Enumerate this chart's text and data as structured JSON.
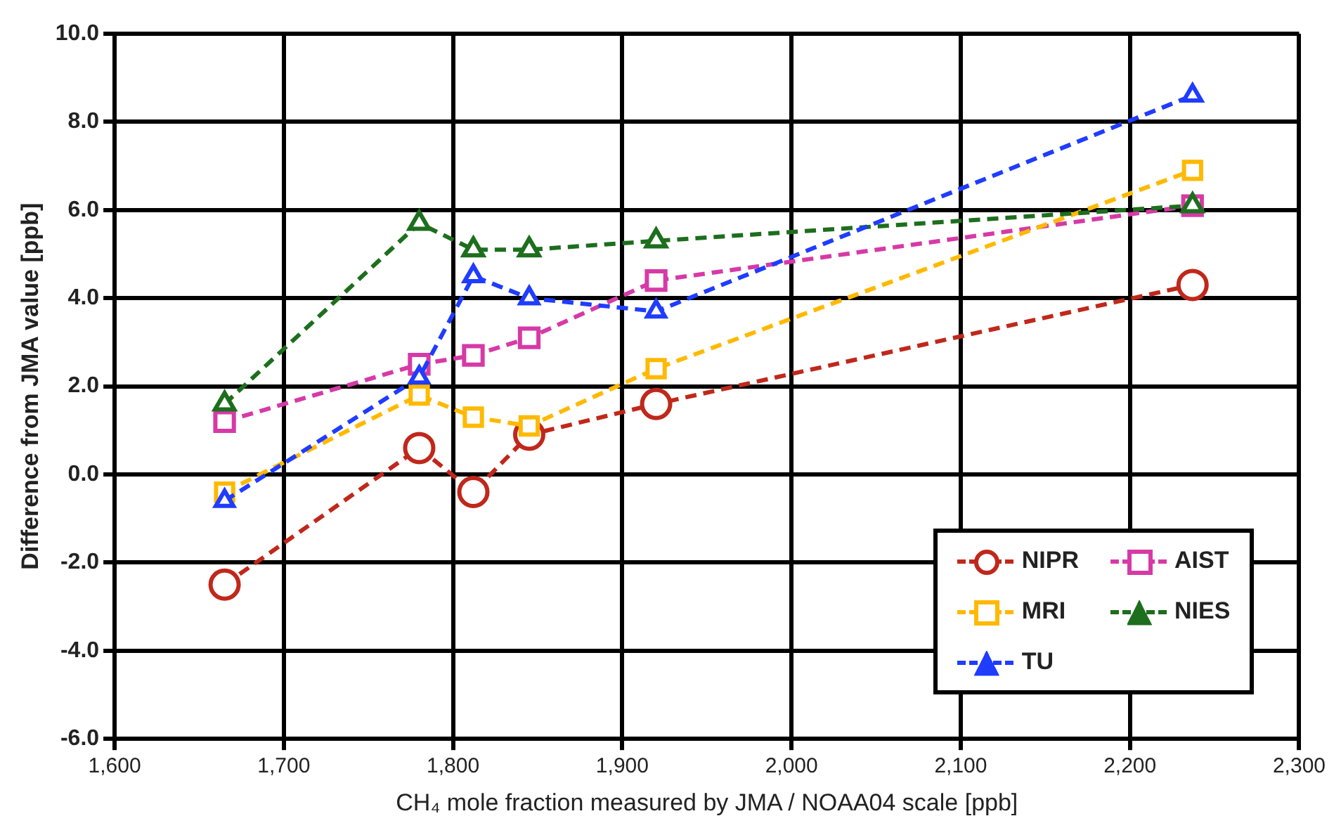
{
  "chart_data": {
    "type": "line",
    "xlabel": "CH₄ mole fraction measured by JMA / NOAA04 scale [ppb]",
    "ylabel": "Difference from JMA value [ppb]",
    "x": [
      1665,
      1780,
      1812,
      1845,
      1920,
      2237
    ],
    "series": [
      {
        "name": "NIPR",
        "color": "#c0281b",
        "marker": "circle",
        "values": [
          -2.5,
          0.6,
          -0.4,
          0.9,
          1.6,
          4.3
        ]
      },
      {
        "name": "AIST",
        "color": "#d63aa6",
        "marker": "square",
        "values": [
          1.2,
          2.5,
          2.7,
          3.1,
          4.4,
          6.1
        ]
      },
      {
        "name": "MRI",
        "color": "#ffb900",
        "marker": "square",
        "values": [
          -0.4,
          1.8,
          1.3,
          1.1,
          2.4,
          6.9
        ]
      },
      {
        "name": "NIES",
        "color": "#1d6e1d",
        "marker": "triangle",
        "values": [
          1.6,
          5.7,
          5.1,
          5.1,
          5.3,
          6.1
        ]
      },
      {
        "name": "TU",
        "color": "#1f3cff",
        "marker": "triangle",
        "values": [
          -0.6,
          2.2,
          4.5,
          4.0,
          3.7,
          8.6
        ]
      }
    ],
    "xlim": [
      1600,
      2300
    ],
    "xticks": [
      {
        "value": 1600,
        "label": "1,600"
      },
      {
        "value": 1700,
        "label": "1,700"
      },
      {
        "value": 1800,
        "label": "1,800"
      },
      {
        "value": 1900,
        "label": "1,900"
      },
      {
        "value": 2000,
        "label": "2,000"
      },
      {
        "value": 2100,
        "label": "2,100"
      },
      {
        "value": 2200,
        "label": "2,200"
      },
      {
        "value": 2300,
        "label": "2,300"
      }
    ],
    "ylim": [
      -6,
      10
    ],
    "yticks": [
      {
        "value": -6,
        "label": "-6.0"
      },
      {
        "value": -4,
        "label": "-4.0"
      },
      {
        "value": -2,
        "label": "-2.0"
      },
      {
        "value": 0,
        "label": "0.0"
      },
      {
        "value": 2,
        "label": "2.0"
      },
      {
        "value": 4,
        "label": "4.0"
      },
      {
        "value": 6,
        "label": "6.0"
      },
      {
        "value": 8,
        "label": "8.0"
      },
      {
        "value": 10,
        "label": "10.0"
      }
    ],
    "grid": true,
    "legend": "bottom right",
    "line_style": "dashed"
  }
}
